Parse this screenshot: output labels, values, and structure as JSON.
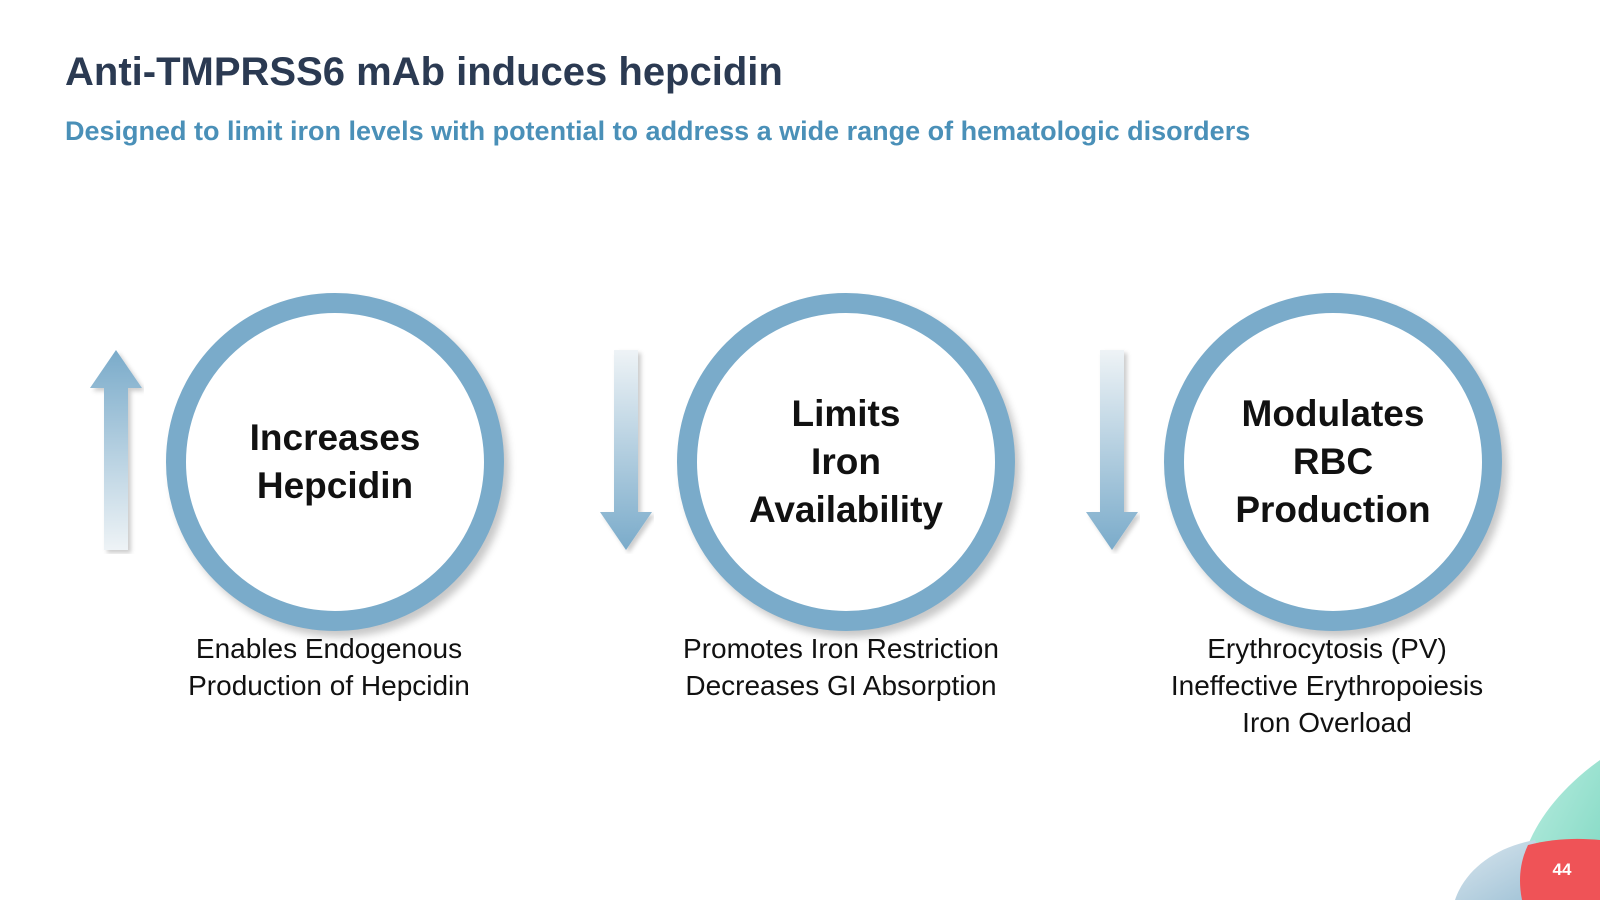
{
  "slide": {
    "title": "Anti-TMPRSS6 mAb induces hepcidin",
    "subtitle": "Designed to limit iron levels with potential to address a wide range of hematologic disorders",
    "page_number": "44"
  },
  "steps": [
    {
      "arrow": "up-arrow-icon",
      "circle_lines": [
        "Increases",
        "Hepcidin"
      ],
      "desc_lines": [
        "Enables Endogenous",
        "Production of Hepcidin"
      ]
    },
    {
      "arrow": "down-arrow-icon",
      "circle_lines": [
        "Limits",
        "Iron",
        "Availability"
      ],
      "desc_lines": [
        "Promotes Iron Restriction",
        "Decreases GI Absorption"
      ]
    },
    {
      "arrow": "down-arrow-icon",
      "circle_lines": [
        "Modulates",
        "RBC",
        "Production"
      ],
      "desc_lines": [
        "Erythrocytosis (PV)",
        "Ineffective Erythropoiesis",
        "Iron Overload"
      ]
    }
  ],
  "colors": {
    "title": "#2b3a52",
    "subtitle": "#4a90b8",
    "circle_ring": "#7aabca",
    "arrow": "#7aabca",
    "corner_teal": "#8fdcc8",
    "corner_red": "#ef5357"
  }
}
